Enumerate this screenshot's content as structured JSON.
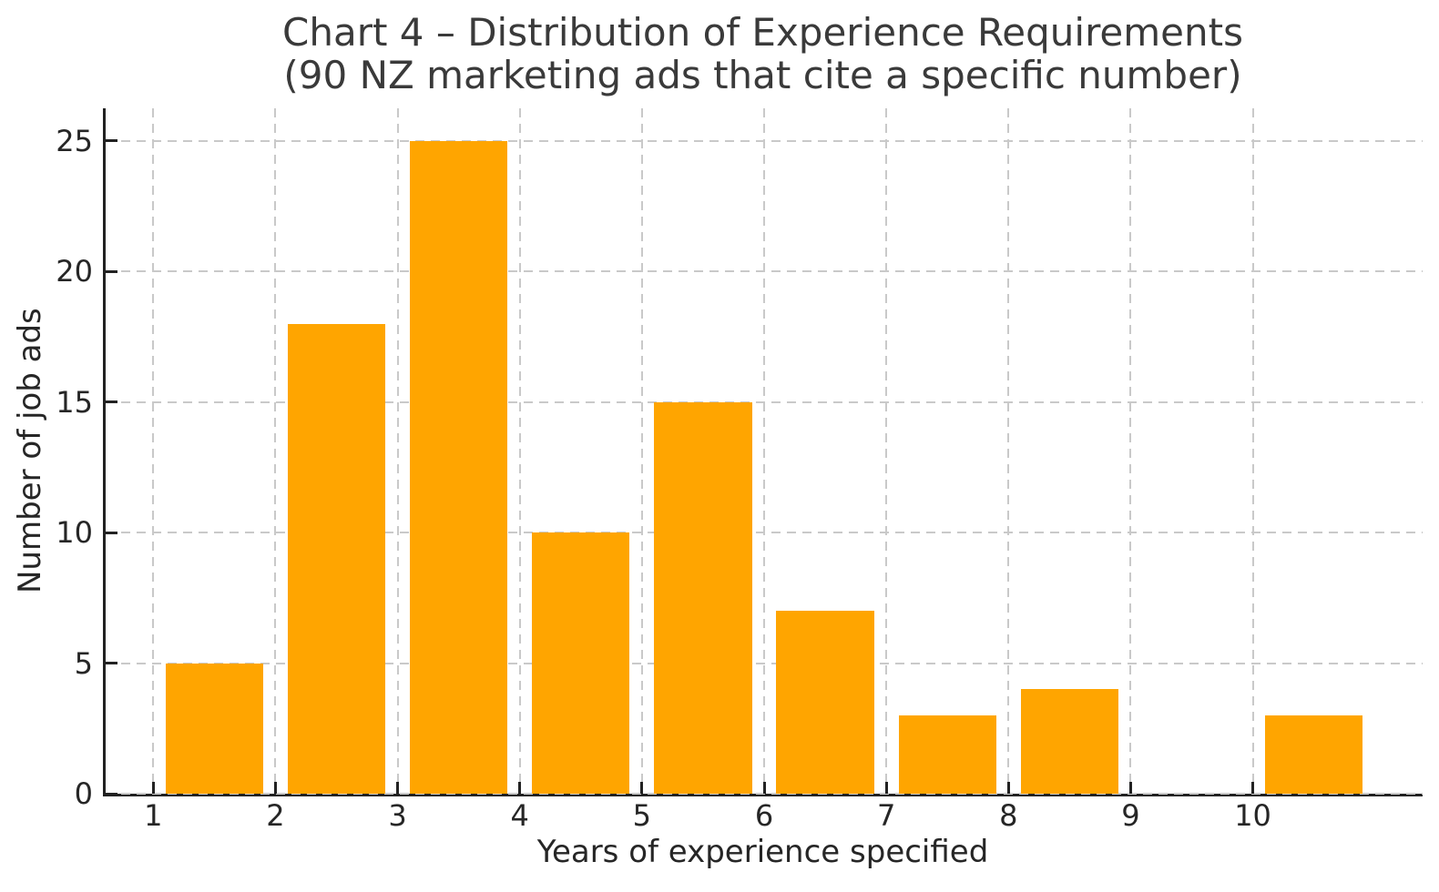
{
  "chart_data": {
    "type": "bar",
    "title_line1": "Chart 4 – Distribution of Experience Requirements",
    "title_line2": "(90 NZ marketing ads that cite a specific number)",
    "xlabel": "Years of experience specified",
    "ylabel": "Number of job ads",
    "x_centers": [
      1.5,
      2.5,
      3.5,
      4.5,
      5.5,
      6.5,
      7.5,
      8.5,
      10.5
    ],
    "values": [
      5,
      18,
      25,
      10,
      15,
      7,
      3,
      4,
      3
    ],
    "bar_width": 0.8,
    "xticks": [
      "1",
      "2",
      "3",
      "4",
      "5",
      "6",
      "7",
      "8",
      "9",
      "10"
    ],
    "xtick_positions": [
      1,
      2,
      3,
      4,
      5,
      6,
      7,
      8,
      9,
      10
    ],
    "yticks": [
      "0",
      "5",
      "10",
      "15",
      "20",
      "25"
    ],
    "ytick_positions": [
      0,
      5,
      10,
      15,
      20,
      25
    ],
    "xlim": [
      0.61,
      11.39
    ],
    "ylim": [
      0,
      26.25
    ],
    "grid": true,
    "grid_style": "dashed",
    "legend": "none",
    "bar_color": "#FFA500",
    "grid_color": "#c9c9c9",
    "axis_color": "#222222",
    "tick_text_color": "#262626",
    "title_color": "#3a3a3a"
  }
}
